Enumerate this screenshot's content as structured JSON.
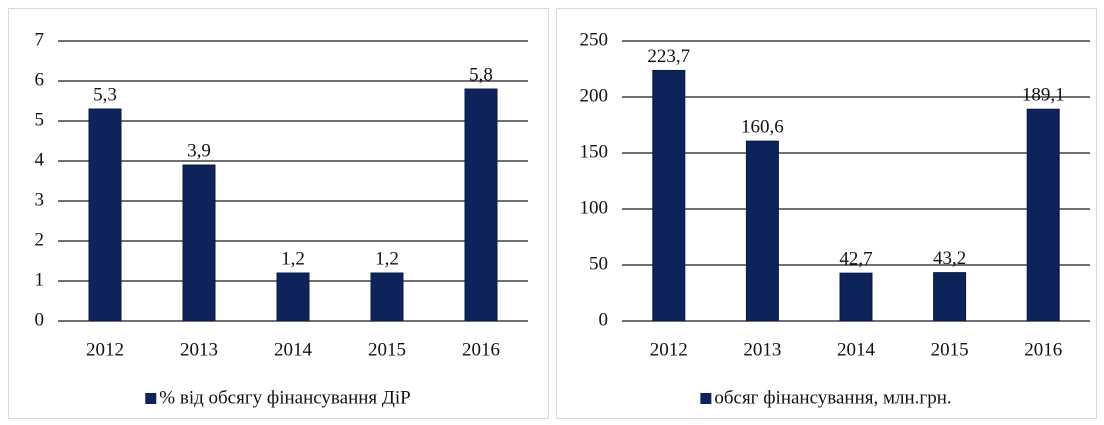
{
  "chart_data": [
    {
      "type": "bar",
      "categories": [
        "2012",
        "2013",
        "2014",
        "2015",
        "2016"
      ],
      "series": [
        {
          "name": "% від обсягу фінансування ДіР",
          "color": "#0d2359",
          "values": [
            5.3,
            3.9,
            1.2,
            1.2,
            5.8
          ],
          "value_labels": [
            "5,3",
            "3,9",
            "1,2",
            "1,2",
            "5,8"
          ]
        }
      ],
      "ylim": [
        0,
        7
      ],
      "yticks": [
        0,
        1,
        2,
        3,
        4,
        5,
        6,
        7
      ],
      "grid": true
    },
    {
      "type": "bar",
      "categories": [
        "2012",
        "2013",
        "2014",
        "2015",
        "2016"
      ],
      "series": [
        {
          "name": "обсяг фінансування, млн.грн.",
          "color": "#0d2359",
          "values": [
            223.7,
            160.6,
            42.7,
            43.2,
            189.1
          ],
          "value_labels": [
            "223,7",
            "160,6",
            "42,7",
            "43,2",
            "189,1"
          ]
        }
      ],
      "ylim": [
        0,
        250
      ],
      "yticks": [
        0,
        50,
        100,
        150,
        200,
        250
      ],
      "grid": true
    }
  ]
}
